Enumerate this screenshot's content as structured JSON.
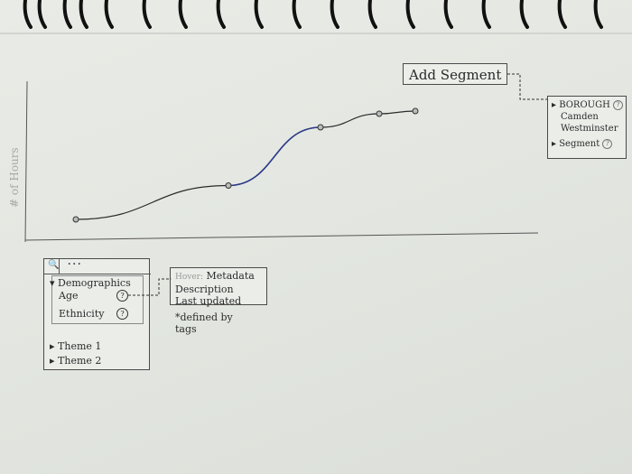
{
  "chart_data": {
    "type": "line",
    "ylabel": "# of Hours",
    "x": [
      1,
      2,
      3,
      4,
      5
    ],
    "series": [
      {
        "values": [
          0,
          25,
          68,
          78,
          80
        ]
      }
    ],
    "ylim": [
      0,
      100
    ]
  },
  "segment": {
    "add_label": "Add Segment",
    "borough_label": "BOROUGH",
    "borough_values": [
      "Camden",
      "Westminster"
    ],
    "segment_label": "Segment"
  },
  "filter": {
    "search_placeholder": "...",
    "demographics_label": "Demographics",
    "age_label": "Age",
    "ethnicity_label": "Ethnicity",
    "help_glyph": "?",
    "theme1_label": "Theme 1",
    "theme2_label": "Theme 2"
  },
  "metadata": {
    "hover_label": "Hover:",
    "title": "Metadata",
    "description": "Description",
    "last_updated": "Last updated",
    "note_line1": "*defined by",
    "note_line2": "tags"
  },
  "colors": {
    "ink": "#2b2b2b",
    "highlight": "#2b3a8a",
    "paper": "#e6e9e4"
  }
}
